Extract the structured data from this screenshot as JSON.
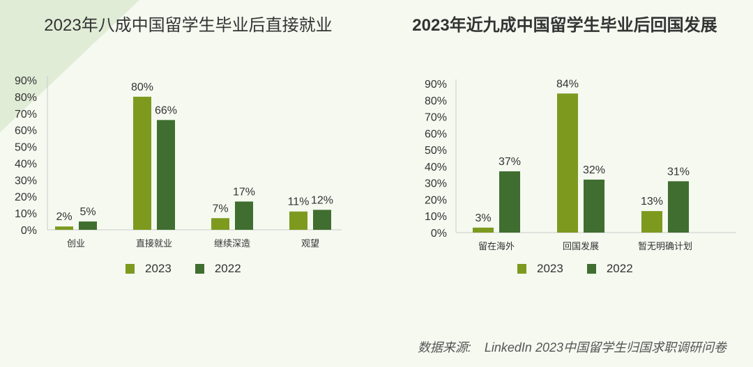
{
  "colors": {
    "series_2023": "#7d9a1f",
    "series_2022": "#3f6e30",
    "axis": "#cccccc",
    "text": "#333333",
    "background": "#f5f9f0",
    "decoration": "#e0ecd6"
  },
  "chart_data": [
    {
      "type": "bar",
      "title": "2023年八成中国留学生毕业后直接就业",
      "categories": [
        "创业",
        "直接就业",
        "继续深造",
        "观望"
      ],
      "series": [
        {
          "name": "2023",
          "values": [
            2,
            80,
            7,
            11
          ],
          "labels": [
            "2%",
            "80%",
            "7%",
            "11%"
          ]
        },
        {
          "name": "2022",
          "values": [
            5,
            66,
            17,
            12
          ],
          "labels": [
            "5%",
            "66%",
            "17%",
            "12%"
          ]
        }
      ],
      "ylim": [
        0,
        90
      ],
      "yticks": [
        "0%",
        "10%",
        "20%",
        "30%",
        "40%",
        "50%",
        "60%",
        "70%",
        "80%",
        "90%"
      ],
      "xlabel": "",
      "ylabel": "",
      "legend": [
        "2023",
        "2022"
      ]
    },
    {
      "type": "bar",
      "title": "2023年近九成中国留学生毕业后回国发展",
      "categories": [
        "留在海外",
        "回国发展",
        "暂无明确计划"
      ],
      "series": [
        {
          "name": "2023",
          "values": [
            3,
            84,
            13
          ],
          "labels": [
            "3%",
            "84%",
            "13%"
          ]
        },
        {
          "name": "2022",
          "values": [
            37,
            32,
            31
          ],
          "labels": [
            "37%",
            "32%",
            "31%"
          ]
        }
      ],
      "ylim": [
        0,
        90
      ],
      "yticks": [
        "0%",
        "10%",
        "20%",
        "30%",
        "40%",
        "50%",
        "60%",
        "70%",
        "80%",
        "90%"
      ],
      "xlabel": "",
      "ylabel": "",
      "legend": [
        "2023",
        "2022"
      ]
    }
  ],
  "source": {
    "label": "数据来源:",
    "text": "LinkedIn 2023中国留学生归国求职调研问卷"
  }
}
